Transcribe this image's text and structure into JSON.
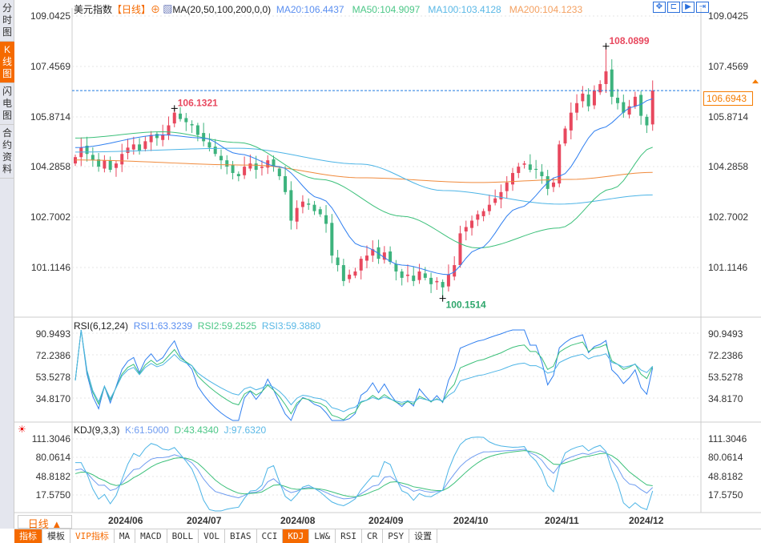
{
  "left_tabs": [
    {
      "label": "分时图"
    },
    {
      "label": "K线图",
      "active": true
    },
    {
      "label": "闪电图"
    },
    {
      "label": "合约资料"
    }
  ],
  "header": {
    "title": "美元指数",
    "period": "【日线】",
    "ma_label": "MA(20,50,100,200,0,0)",
    "ma20": "MA20:106.4437",
    "ma50": "MA50:104.9097",
    "ma100": "MA100:103.4128",
    "ma200": "MA200:104.1233"
  },
  "tools": [
    {
      "icon": "crosshair-icon",
      "glyph": "✥"
    },
    {
      "icon": "zoom-range-icon",
      "glyph": "⊏"
    },
    {
      "icon": "step-icon",
      "glyph": "▶"
    },
    {
      "icon": "end-icon",
      "glyph": "⇥"
    }
  ],
  "price_axis": [
    "109.0425",
    "107.4569",
    "105.8714",
    "104.2858",
    "102.7002",
    "101.1146"
  ],
  "current_price": "106.6943",
  "annotations": {
    "high1": "106.1321",
    "high2": "108.0899",
    "low": "100.1514"
  },
  "rsi": {
    "label": "RSI(6,12,24)",
    "rsi1": "RSI1:63.3239",
    "rsi2": "RSI2:59.2525",
    "rsi3": "RSI3:59.3880",
    "axis": [
      "90.9493",
      "72.2386",
      "53.5278",
      "34.8170"
    ]
  },
  "kdj": {
    "label": "KDJ(9,3,3)",
    "k": "K:61.5000",
    "d": "D:43.4340",
    "j": "J:97.6320",
    "axis": [
      "111.3046",
      "80.0614",
      "48.8182",
      "17.5750"
    ]
  },
  "period_selector": "日线 ▲",
  "dates": [
    "2024/06",
    "2024/07",
    "2024/08",
    "2024/09",
    "2024/10",
    "2024/11",
    "2024/12"
  ],
  "bottom_tabs": [
    "指标",
    "模板",
    "VIP指标",
    "MA",
    "MACD",
    "BOLL",
    "VOL",
    "BIAS",
    "CCI",
    "KDJ",
    "LW&",
    "RSI",
    "CR",
    "PSY",
    "设置"
  ],
  "colors": {
    "up": "#e8485e",
    "down": "#3db37d",
    "ma20": "#2f7ff0",
    "ma50": "#3cc07a",
    "ma100": "#4cb4e6",
    "ma200": "#f08a3c",
    "accent": "#f56a00"
  },
  "chart_data": {
    "type": "candlestick",
    "price_range": [
      100.0,
      109.0425
    ],
    "closes": [
      104.6,
      104.9,
      104.7,
      104.5,
      104.3,
      104.5,
      104.2,
      104.4,
      104.7,
      104.9,
      105.0,
      104.8,
      105.1,
      105.3,
      105.2,
      105.3,
      105.6,
      106.0,
      105.8,
      105.7,
      105.6,
      105.3,
      105.1,
      104.9,
      104.7,
      104.5,
      104.3,
      104.1,
      104.0,
      104.3,
      104.4,
      104.2,
      104.3,
      104.5,
      104.3,
      104.0,
      103.5,
      102.6,
      103.0,
      103.2,
      103.1,
      102.9,
      102.8,
      102.5,
      101.5,
      101.2,
      100.7,
      100.9,
      101.0,
      101.4,
      101.5,
      101.7,
      101.4,
      101.6,
      101.3,
      101.0,
      100.8,
      100.9,
      100.7,
      101.0,
      100.8,
      100.6,
      100.7,
      100.5,
      100.9,
      101.2,
      102.2,
      102.4,
      102.6,
      102.8,
      102.9,
      103.1,
      103.3,
      103.5,
      103.8,
      104.1,
      104.3,
      104.4,
      104.2,
      104.2,
      104.0,
      103.6,
      103.8,
      105.0,
      105.5,
      106.0,
      106.3,
      106.6,
      106.2,
      106.7,
      106.9,
      107.3,
      106.5,
      106.3,
      106.0,
      106.2,
      106.5,
      105.9,
      105.6,
      106.6943
    ],
    "extremes": [
      {
        "index": 17,
        "high": 106.1321
      },
      {
        "index": 91,
        "high": 108.0899
      },
      {
        "index": 63,
        "low": 100.1514
      }
    ],
    "ma20": [
      [
        0,
        104.9
      ],
      [
        15,
        105.3
      ],
      [
        22,
        105.2
      ],
      [
        28,
        104.7
      ],
      [
        35,
        104.3
      ],
      [
        42,
        103.3
      ],
      [
        49,
        101.8
      ],
      [
        56,
        101.2
      ],
      [
        64,
        100.9
      ],
      [
        69,
        101.7
      ],
      [
        76,
        103.0
      ],
      [
        83,
        104.0
      ],
      [
        90,
        105.5
      ],
      [
        96,
        106.2
      ],
      [
        99,
        106.44
      ]
    ],
    "ma50": [
      [
        0,
        105.2
      ],
      [
        15,
        105.4
      ],
      [
        28,
        105.06
      ],
      [
        42,
        103.9
      ],
      [
        56,
        102.74
      ],
      [
        69,
        101.74
      ],
      [
        83,
        102.37
      ],
      [
        92,
        103.6
      ],
      [
        99,
        104.91
      ]
    ],
    "ma100": [
      [
        0,
        104.76
      ],
      [
        28,
        104.88
      ],
      [
        49,
        104.38
      ],
      [
        63,
        103.55
      ],
      [
        83,
        103.12
      ],
      [
        99,
        103.41
      ]
    ],
    "ma200": [
      [
        0,
        104.51
      ],
      [
        30,
        104.35
      ],
      [
        49,
        103.95
      ],
      [
        69,
        103.8
      ],
      [
        85,
        103.9
      ],
      [
        99,
        104.12
      ]
    ]
  }
}
